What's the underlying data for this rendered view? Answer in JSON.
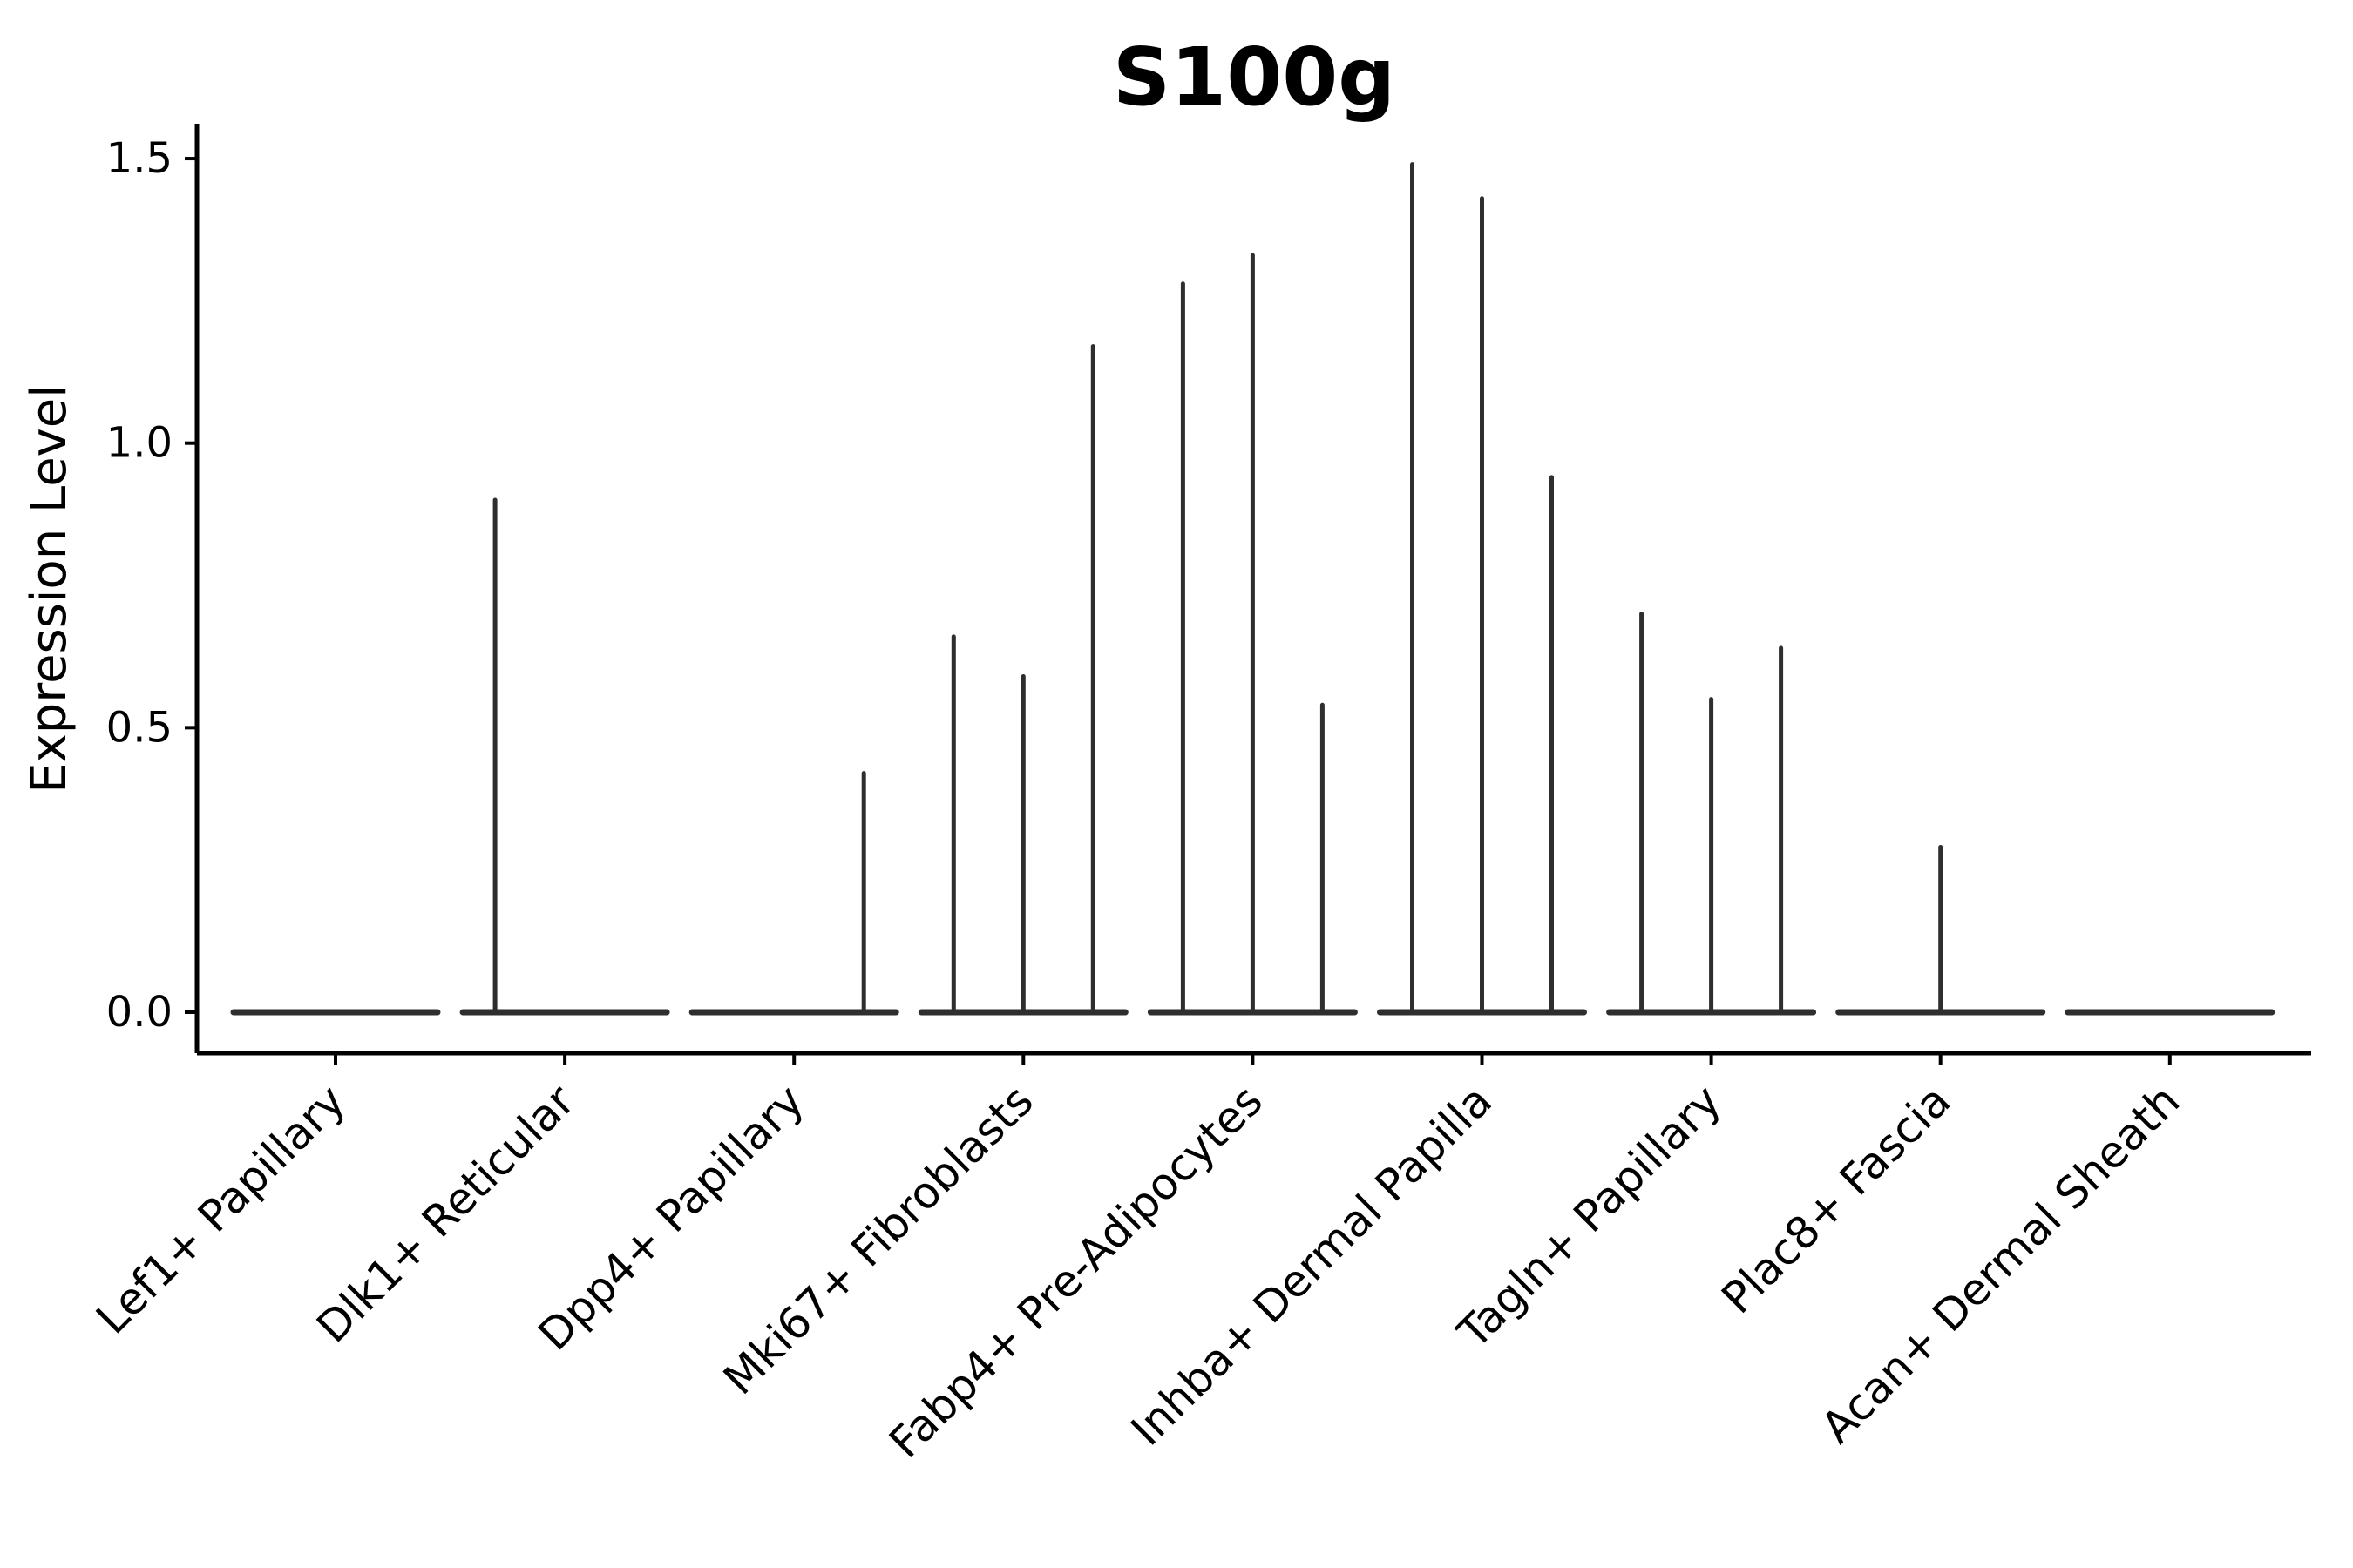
{
  "chart_data": {
    "type": "violin",
    "title": "S100g",
    "xlabel": "",
    "ylabel": "Expression Level",
    "grid": false,
    "legend": "none",
    "ylim": [
      -0.07,
      1.56
    ],
    "yticks": [
      {
        "label": "0.0",
        "value": 0.0
      },
      {
        "label": "0.5",
        "value": 0.5
      },
      {
        "label": "1.0",
        "value": 1.0
      },
      {
        "label": "1.5",
        "value": 1.5
      }
    ],
    "categories": [
      "Lef1+ Papillary",
      "Dlk1+ Reticular",
      "Dpp4+ Papillary",
      "Mki67+ Fibroblasts",
      "Fabp4+ Pre-Adipocytes",
      "Inhba+ Dermal Papilla",
      "Tagln+ Papillary",
      "Plac8+ Fascia",
      "Acan+ Dermal Sheath"
    ],
    "sub_violins_per_category": 3,
    "description": "Each category shows three thin sub-violins; mass concentrated at 0 (flat baseline) with a narrow spike reaching the listed maximum expression value.",
    "series": [
      {
        "category": "Lef1+ Papillary",
        "max_values": [
          0.0,
          0.0,
          0.0
        ]
      },
      {
        "category": "Dlk1+ Reticular",
        "max_values": [
          0.9,
          0.0,
          0.0
        ]
      },
      {
        "category": "Dpp4+ Papillary",
        "max_values": [
          0.0,
          0.0,
          0.42
        ]
      },
      {
        "category": "Mki67+ Fibroblasts",
        "max_values": [
          0.66,
          0.59,
          1.17
        ]
      },
      {
        "category": "Fabp4+ Pre-Adipocytes",
        "max_values": [
          1.28,
          1.33,
          0.54
        ]
      },
      {
        "category": "Inhba+ Dermal Papilla",
        "max_values": [
          1.49,
          1.43,
          0.94
        ]
      },
      {
        "category": "Tagln+ Papillary",
        "max_values": [
          0.7,
          0.55,
          0.64
        ]
      },
      {
        "category": "Plac8+ Fascia",
        "max_values": [
          0.0,
          0.29,
          0.0
        ]
      },
      {
        "category": "Acan+ Dermal Sheath",
        "max_values": [
          0.0,
          0.0,
          0.0
        ]
      }
    ],
    "colors": {
      "violin": "#2e2e2e",
      "axis": "#000000",
      "background": "#ffffff"
    }
  }
}
